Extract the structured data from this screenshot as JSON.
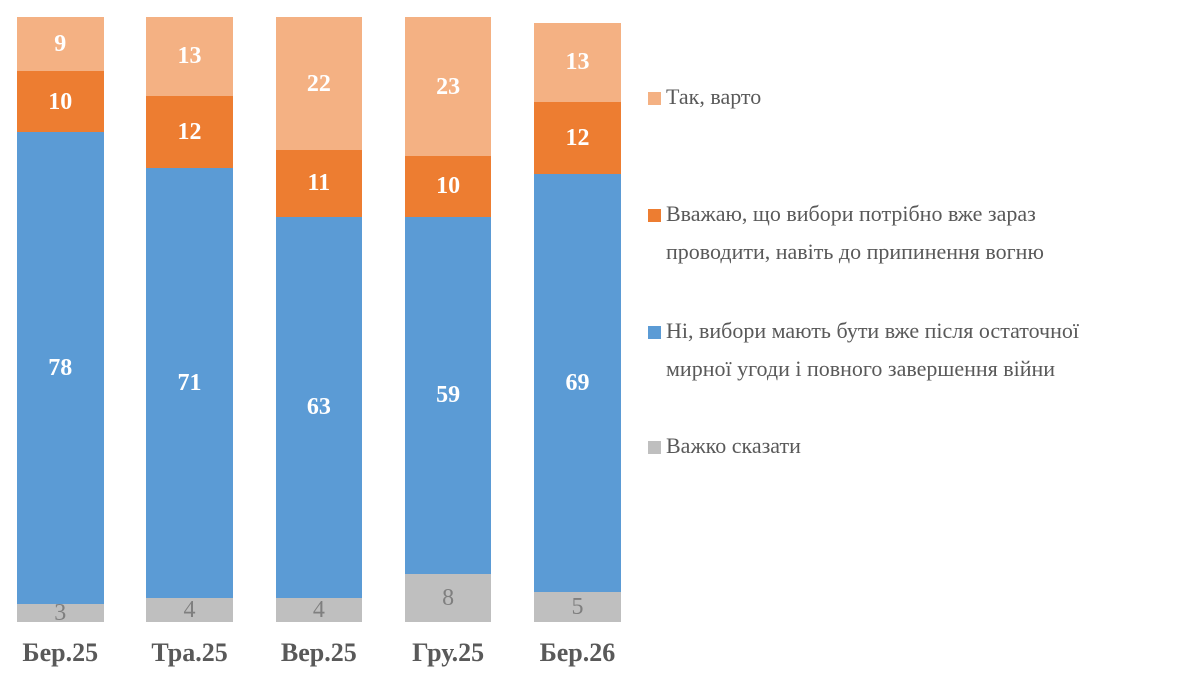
{
  "chart_data": {
    "type": "bar",
    "subtype": "stacked-column",
    "title": "",
    "categories": [
      "Бер.25",
      "Тра.25",
      "Вер.25",
      "Гру.25",
      "Бер.26"
    ],
    "series": [
      {
        "name": "Так, варто",
        "color": "#f4b183",
        "label_color": "#ffffff",
        "label_weight": "bold",
        "values": [
          9,
          13,
          22,
          23,
          13
        ]
      },
      {
        "name": "Вважаю, що вибори потрібно вже зараз проводити, навіть до припинення вогню",
        "color": "#ed7d31",
        "label_color": "#ffffff",
        "label_weight": "bold",
        "values": [
          10,
          12,
          11,
          10,
          12
        ]
      },
      {
        "name": "Ні, вибори мають бути вже після остаточної мирної угоди і повного завершення війни",
        "color": "#5b9bd5",
        "label_color": "#ffffff",
        "label_weight": "bold",
        "values": [
          78,
          71,
          63,
          59,
          69
        ]
      },
      {
        "name": "Важко сказати",
        "color": "#bfbfbf",
        "label_color": "#7f7f7f",
        "label_weight": "normal",
        "values": [
          3,
          4,
          4,
          8,
          5
        ]
      }
    ],
    "ylim": [
      0,
      100
    ],
    "grid": false,
    "legend_position": "right",
    "axis_label_color": "#595959",
    "legend_text_color": "#595959"
  }
}
